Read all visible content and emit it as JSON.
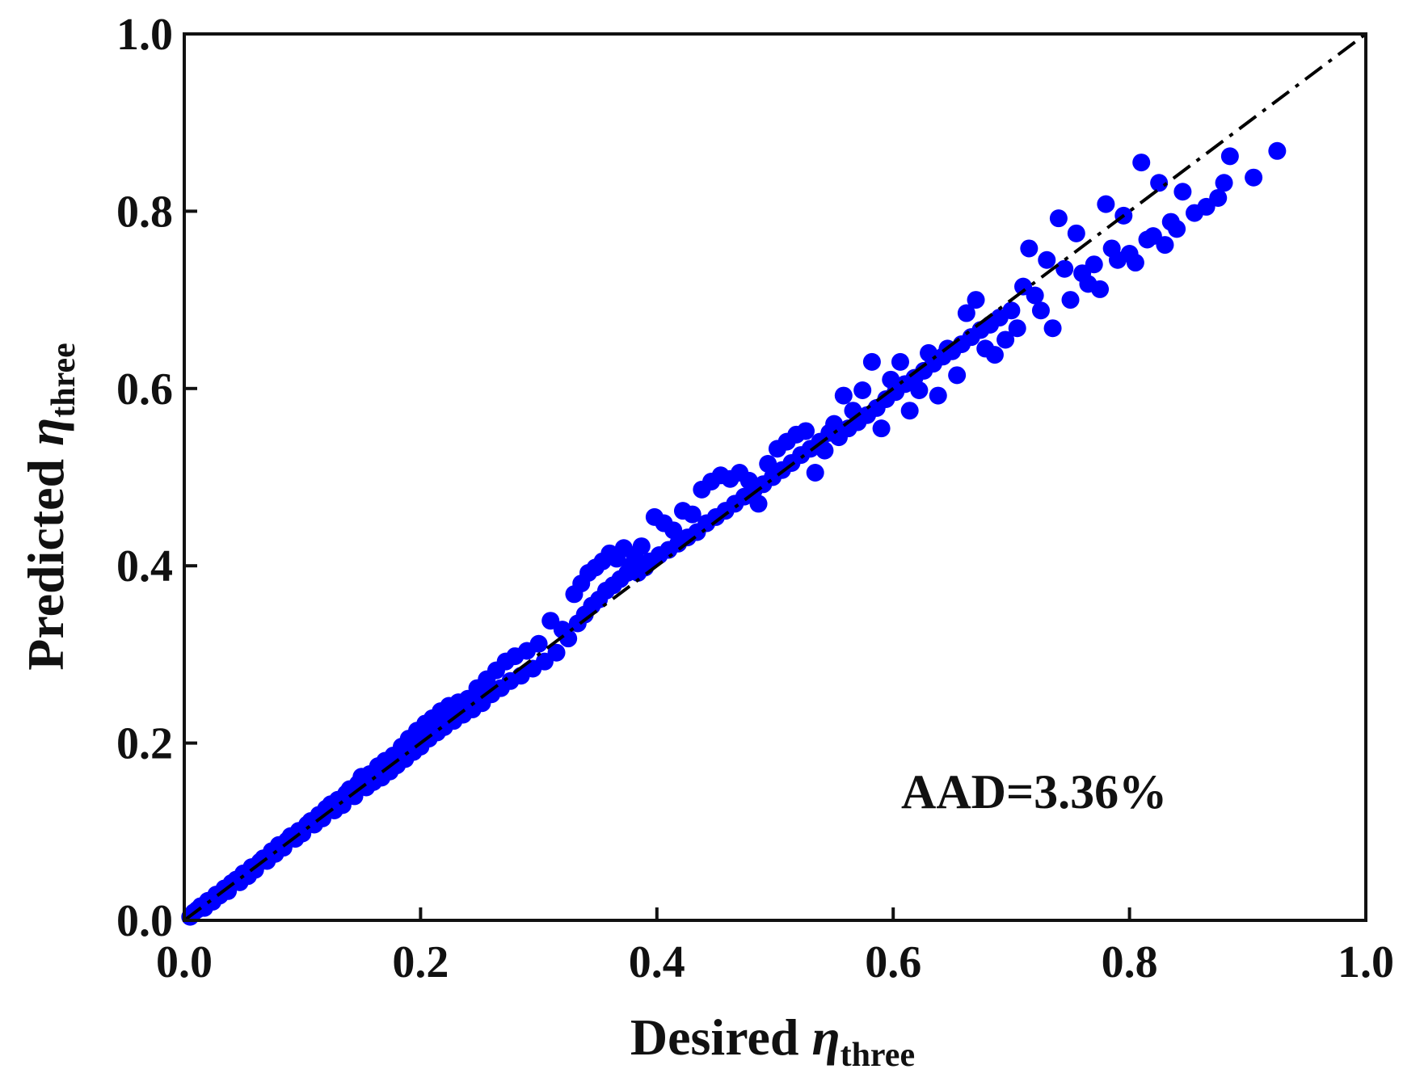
{
  "chart_data": {
    "type": "scatter",
    "xlabel": {
      "prefix": "Desired ",
      "symbol": "η",
      "subscript": "three"
    },
    "ylabel": {
      "prefix": "Predicted ",
      "symbol": "η",
      "subscript": "three"
    },
    "xlim": [
      0.0,
      1.0
    ],
    "ylim": [
      0.0,
      1.0
    ],
    "xticks": [
      "0.0",
      "0.2",
      "0.4",
      "0.6",
      "0.8",
      "1.0"
    ],
    "yticks": [
      "0.0",
      "0.2",
      "0.4",
      "0.6",
      "0.8",
      "1.0"
    ],
    "grid": false,
    "annotation": "AAD=3.36%",
    "reference_line": {
      "style": "dash-dot",
      "color": "#000000",
      "from": [
        0,
        0
      ],
      "to": [
        1,
        1
      ]
    },
    "marker_color": "#0000ff",
    "points": [
      [
        0.005,
        0.004
      ],
      [
        0.008,
        0.009
      ],
      [
        0.011,
        0.012
      ],
      [
        0.014,
        0.016
      ],
      [
        0.017,
        0.014
      ],
      [
        0.02,
        0.022
      ],
      [
        0.024,
        0.021
      ],
      [
        0.027,
        0.029
      ],
      [
        0.03,
        0.028
      ],
      [
        0.034,
        0.036
      ],
      [
        0.037,
        0.033
      ],
      [
        0.04,
        0.042
      ],
      [
        0.044,
        0.046
      ],
      [
        0.047,
        0.043
      ],
      [
        0.05,
        0.053
      ],
      [
        0.054,
        0.05
      ],
      [
        0.057,
        0.06
      ],
      [
        0.06,
        0.057
      ],
      [
        0.064,
        0.066
      ],
      [
        0.067,
        0.07
      ],
      [
        0.07,
        0.067
      ],
      [
        0.074,
        0.078
      ],
      [
        0.077,
        0.075
      ],
      [
        0.08,
        0.085
      ],
      [
        0.084,
        0.082
      ],
      [
        0.087,
        0.09
      ],
      [
        0.09,
        0.095
      ],
      [
        0.094,
        0.092
      ],
      [
        0.097,
        0.101
      ],
      [
        0.1,
        0.098
      ],
      [
        0.104,
        0.108
      ],
      [
        0.107,
        0.112
      ],
      [
        0.11,
        0.108
      ],
      [
        0.114,
        0.119
      ],
      [
        0.117,
        0.115
      ],
      [
        0.12,
        0.126
      ],
      [
        0.124,
        0.131
      ],
      [
        0.127,
        0.124
      ],
      [
        0.13,
        0.136
      ],
      [
        0.134,
        0.13
      ],
      [
        0.137,
        0.143
      ],
      [
        0.14,
        0.148
      ],
      [
        0.144,
        0.14
      ],
      [
        0.147,
        0.154
      ],
      [
        0.15,
        0.162
      ],
      [
        0.154,
        0.15
      ],
      [
        0.157,
        0.165
      ],
      [
        0.16,
        0.156
      ],
      [
        0.164,
        0.174
      ],
      [
        0.167,
        0.161
      ],
      [
        0.17,
        0.18
      ],
      [
        0.174,
        0.168
      ],
      [
        0.177,
        0.186
      ],
      [
        0.18,
        0.175
      ],
      [
        0.184,
        0.196
      ],
      [
        0.187,
        0.182
      ],
      [
        0.19,
        0.205
      ],
      [
        0.194,
        0.19
      ],
      [
        0.197,
        0.214
      ],
      [
        0.2,
        0.196
      ],
      [
        0.204,
        0.222
      ],
      [
        0.207,
        0.205
      ],
      [
        0.21,
        0.228
      ],
      [
        0.214,
        0.212
      ],
      [
        0.217,
        0.236
      ],
      [
        0.22,
        0.218
      ],
      [
        0.224,
        0.242
      ],
      [
        0.228,
        0.225
      ],
      [
        0.232,
        0.246
      ],
      [
        0.236,
        0.232
      ],
      [
        0.24,
        0.25
      ],
      [
        0.244,
        0.238
      ],
      [
        0.248,
        0.262
      ],
      [
        0.252,
        0.245
      ],
      [
        0.256,
        0.272
      ],
      [
        0.26,
        0.255
      ],
      [
        0.264,
        0.282
      ],
      [
        0.268,
        0.262
      ],
      [
        0.272,
        0.292
      ],
      [
        0.276,
        0.27
      ],
      [
        0.28,
        0.298
      ],
      [
        0.285,
        0.276
      ],
      [
        0.29,
        0.304
      ],
      [
        0.295,
        0.284
      ],
      [
        0.3,
        0.312
      ],
      [
        0.305,
        0.292
      ],
      [
        0.31,
        0.338
      ],
      [
        0.315,
        0.302
      ],
      [
        0.32,
        0.328
      ],
      [
        0.325,
        0.318
      ],
      [
        0.33,
        0.368
      ],
      [
        0.333,
        0.335
      ],
      [
        0.336,
        0.38
      ],
      [
        0.339,
        0.345
      ],
      [
        0.342,
        0.392
      ],
      [
        0.345,
        0.355
      ],
      [
        0.348,
        0.398
      ],
      [
        0.351,
        0.362
      ],
      [
        0.354,
        0.405
      ],
      [
        0.357,
        0.372
      ],
      [
        0.36,
        0.414
      ],
      [
        0.363,
        0.378
      ],
      [
        0.366,
        0.408
      ],
      [
        0.369,
        0.385
      ],
      [
        0.372,
        0.42
      ],
      [
        0.375,
        0.392
      ],
      [
        0.378,
        0.4
      ],
      [
        0.381,
        0.412
      ],
      [
        0.384,
        0.392
      ],
      [
        0.387,
        0.422
      ],
      [
        0.39,
        0.398
      ],
      [
        0.394,
        0.405
      ],
      [
        0.398,
        0.455
      ],
      [
        0.402,
        0.412
      ],
      [
        0.406,
        0.448
      ],
      [
        0.41,
        0.418
      ],
      [
        0.414,
        0.44
      ],
      [
        0.418,
        0.425
      ],
      [
        0.422,
        0.462
      ],
      [
        0.426,
        0.432
      ],
      [
        0.43,
        0.458
      ],
      [
        0.434,
        0.438
      ],
      [
        0.438,
        0.486
      ],
      [
        0.442,
        0.448
      ],
      [
        0.446,
        0.495
      ],
      [
        0.45,
        0.455
      ],
      [
        0.454,
        0.502
      ],
      [
        0.458,
        0.462
      ],
      [
        0.462,
        0.498
      ],
      [
        0.466,
        0.47
      ],
      [
        0.47,
        0.505
      ],
      [
        0.474,
        0.478
      ],
      [
        0.478,
        0.496
      ],
      [
        0.482,
        0.485
      ],
      [
        0.486,
        0.47
      ],
      [
        0.49,
        0.492
      ],
      [
        0.494,
        0.515
      ],
      [
        0.498,
        0.5
      ],
      [
        0.502,
        0.532
      ],
      [
        0.506,
        0.508
      ],
      [
        0.51,
        0.54
      ],
      [
        0.514,
        0.516
      ],
      [
        0.518,
        0.548
      ],
      [
        0.522,
        0.525
      ],
      [
        0.526,
        0.552
      ],
      [
        0.53,
        0.532
      ],
      [
        0.534,
        0.505
      ],
      [
        0.538,
        0.54
      ],
      [
        0.542,
        0.53
      ],
      [
        0.546,
        0.55
      ],
      [
        0.55,
        0.56
      ],
      [
        0.554,
        0.545
      ],
      [
        0.558,
        0.592
      ],
      [
        0.562,
        0.555
      ],
      [
        0.566,
        0.575
      ],
      [
        0.57,
        0.562
      ],
      [
        0.574,
        0.598
      ],
      [
        0.578,
        0.57
      ],
      [
        0.582,
        0.63
      ],
      [
        0.586,
        0.578
      ],
      [
        0.59,
        0.555
      ],
      [
        0.594,
        0.588
      ],
      [
        0.598,
        0.61
      ],
      [
        0.602,
        0.596
      ],
      [
        0.606,
        0.63
      ],
      [
        0.61,
        0.605
      ],
      [
        0.614,
        0.575
      ],
      [
        0.618,
        0.612
      ],
      [
        0.622,
        0.598
      ],
      [
        0.626,
        0.62
      ],
      [
        0.63,
        0.64
      ],
      [
        0.634,
        0.628
      ],
      [
        0.638,
        0.592
      ],
      [
        0.642,
        0.636
      ],
      [
        0.646,
        0.645
      ],
      [
        0.65,
        0.642
      ],
      [
        0.654,
        0.615
      ],
      [
        0.658,
        0.65
      ],
      [
        0.662,
        0.685
      ],
      [
        0.666,
        0.658
      ],
      [
        0.67,
        0.7
      ],
      [
        0.674,
        0.666
      ],
      [
        0.678,
        0.645
      ],
      [
        0.682,
        0.672
      ],
      [
        0.686,
        0.638
      ],
      [
        0.69,
        0.68
      ],
      [
        0.695,
        0.655
      ],
      [
        0.7,
        0.688
      ],
      [
        0.705,
        0.668
      ],
      [
        0.71,
        0.715
      ],
      [
        0.715,
        0.758
      ],
      [
        0.72,
        0.705
      ],
      [
        0.725,
        0.688
      ],
      [
        0.73,
        0.745
      ],
      [
        0.735,
        0.668
      ],
      [
        0.74,
        0.792
      ],
      [
        0.745,
        0.735
      ],
      [
        0.75,
        0.7
      ],
      [
        0.755,
        0.775
      ],
      [
        0.76,
        0.73
      ],
      [
        0.765,
        0.718
      ],
      [
        0.77,
        0.74
      ],
      [
        0.775,
        0.712
      ],
      [
        0.78,
        0.808
      ],
      [
        0.785,
        0.758
      ],
      [
        0.79,
        0.745
      ],
      [
        0.795,
        0.795
      ],
      [
        0.8,
        0.752
      ],
      [
        0.805,
        0.742
      ],
      [
        0.81,
        0.855
      ],
      [
        0.815,
        0.768
      ],
      [
        0.82,
        0.772
      ],
      [
        0.825,
        0.832
      ],
      [
        0.83,
        0.762
      ],
      [
        0.835,
        0.788
      ],
      [
        0.84,
        0.78
      ],
      [
        0.845,
        0.822
      ],
      [
        0.855,
        0.798
      ],
      [
        0.865,
        0.805
      ],
      [
        0.875,
        0.815
      ],
      [
        0.88,
        0.832
      ],
      [
        0.885,
        0.862
      ],
      [
        0.905,
        0.838
      ],
      [
        0.925,
        0.868
      ]
    ]
  }
}
